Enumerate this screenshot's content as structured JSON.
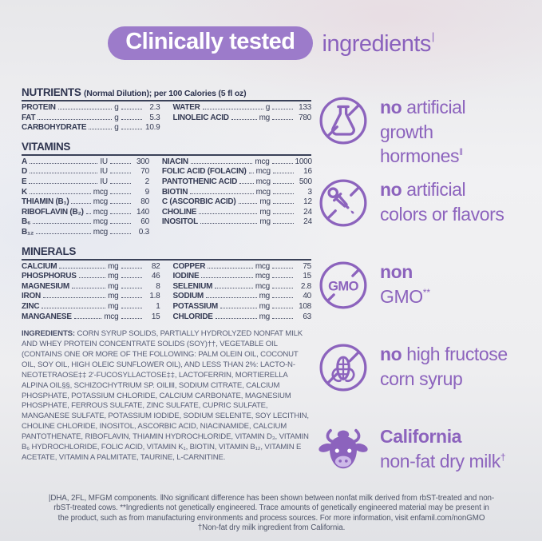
{
  "header": {
    "pill_label": "Clinically tested",
    "suffix": "ingredients",
    "suffix_mark": "|"
  },
  "accent_colors": {
    "pill_purple": "#9c7bca",
    "claim_purple": "#8c63bd",
    "table_ink": "#353b54"
  },
  "nutrients": {
    "title": "NUTRIENTS",
    "subtitle": "(Normal Dilution); per 100 Calories (5 fl oz)",
    "left": [
      {
        "name": "PROTEIN",
        "unit": "g",
        "value": "2.3"
      },
      {
        "name": "FAT",
        "unit": "g",
        "value": "5.3"
      },
      {
        "name": "CARBOHYDRATE",
        "unit": "g",
        "value": "10.9"
      }
    ],
    "right": [
      {
        "name": "WATER",
        "unit": "g",
        "value": "133"
      },
      {
        "name": "LINOLEIC ACID",
        "unit": "mg",
        "value": "780"
      }
    ]
  },
  "vitamins": {
    "title": "VITAMINS",
    "left": [
      {
        "name": "A",
        "unit": "IU",
        "value": "300"
      },
      {
        "name": "D",
        "unit": "IU",
        "value": "70"
      },
      {
        "name": "E",
        "unit": "IU",
        "value": "2"
      },
      {
        "name": "K",
        "unit": "mcg",
        "value": "9"
      },
      {
        "name": "THIAMIN (B₁)",
        "unit": "mcg",
        "value": "80"
      },
      {
        "name": "RIBOFLAVIN (B₂)",
        "unit": "mcg",
        "value": "140"
      },
      {
        "name": "B₆",
        "unit": "mcg",
        "value": "60"
      },
      {
        "name": "B₁₂",
        "unit": "mcg",
        "value": "0.3"
      }
    ],
    "right": [
      {
        "name": "NIACIN",
        "unit": "mcg",
        "value": "1000"
      },
      {
        "name": "FOLIC ACID (FOLACIN)",
        "unit": "mcg",
        "value": "16"
      },
      {
        "name": "PANTOTHENIC ACID",
        "unit": "mcg",
        "value": "500"
      },
      {
        "name": "BIOTIN",
        "unit": "mcg",
        "value": "3"
      },
      {
        "name": "C (ASCORBIC ACID)",
        "unit": "mg",
        "value": "12"
      },
      {
        "name": "CHOLINE",
        "unit": "mg",
        "value": "24"
      },
      {
        "name": "INOSITOL",
        "unit": "mg",
        "value": "24"
      }
    ]
  },
  "minerals": {
    "title": "MINERALS",
    "left": [
      {
        "name": "CALCIUM",
        "unit": "mg",
        "value": "82"
      },
      {
        "name": "PHOSPHORUS",
        "unit": "mg",
        "value": "46"
      },
      {
        "name": "MAGNESIUM",
        "unit": "mg",
        "value": "8"
      },
      {
        "name": "IRON",
        "unit": "mg",
        "value": "1.8"
      },
      {
        "name": "ZINC",
        "unit": "mg",
        "value": "1"
      },
      {
        "name": "MANGANESE",
        "unit": "mcg",
        "value": "15"
      }
    ],
    "right": [
      {
        "name": "COPPER",
        "unit": "mcg",
        "value": "75"
      },
      {
        "name": "IODINE",
        "unit": "mcg",
        "value": "15"
      },
      {
        "name": "SELENIUM",
        "unit": "mcg",
        "value": "2.8"
      },
      {
        "name": "SODIUM",
        "unit": "mg",
        "value": "40"
      },
      {
        "name": "POTASSIUM",
        "unit": "mg",
        "value": "108"
      },
      {
        "name": "CHLORIDE",
        "unit": "mg",
        "value": "63"
      }
    ]
  },
  "ingredients": {
    "label": "INGREDIENTS:",
    "text": " CORN SYRUP SOLIDS, PARTIALLY HYDROLYZED NONFAT MILK AND WHEY PROTEIN CONCENTRATE SOLIDS (SOY)††, VEGETABLE OIL (CONTAINS ONE OR MORE OF THE FOLLOWING: PALM OLEIN OIL, COCONUT OIL, SOY OIL, HIGH OLEIC SUNFLOWER OIL), AND LESS THAN 2%: LACTO-N-NEOTETRAOSE‡‡ 2'-FUCOSYLLACTOSE‡‡, LACTOFERRIN, MORTIERELLA ALPINA OIL§§, SCHIZOCHYTRIUM SP. OIL‖‖, SODIUM CITRATE, CALCIUM PHOSPHATE, POTASSIUM CHLORIDE, CALCIUM CARBONATE, MAGNESIUM PHOSPHATE, FERROUS SULFATE, ZINC SULFATE, CUPRIC SULFATE, MANGANESE SULFATE, POTASSIUM IODIDE, SODIUM SELENITE, SOY LECITHIN, CHOLINE CHLORIDE, INOSITOL, ASCORBIC ACID, NIACINAMIDE, CALCIUM PANTOTHENATE, RIBOFLAVIN, THIAMIN HYDROCHLORIDE, VITAMIN D₃, VITAMIN B₆ HYDROCHLORIDE, FOLIC ACID, VITAMIN K₁, BIOTIN, VITAMIN B₁₂, VITAMIN E ACETATE, VITAMIN A PALMITATE, TAURINE, L-CARNITINE."
  },
  "claims": [
    {
      "icon": "no-flask",
      "bold": "no",
      "rest": " artificial",
      "line2": "growth",
      "line2_sup": "",
      "line3": "hormones",
      "line3_sup": "‖"
    },
    {
      "icon": "no-dropper",
      "bold": "no",
      "rest": " artificial",
      "line2": "colors or flavors",
      "line2_sup": "",
      "line3": "",
      "line3_sup": ""
    },
    {
      "icon": "no-gmo",
      "bold": "non",
      "rest": "",
      "line2": "GMO",
      "line2_sup": "**",
      "line3": "",
      "line3_sup": ""
    },
    {
      "icon": "no-corn",
      "bold": "no",
      "rest": " high fructose",
      "line2": "corn syrup",
      "line2_sup": "",
      "line3": "",
      "line3_sup": ""
    },
    {
      "icon": "cow",
      "bold": "California",
      "rest": "",
      "line2": "non-fat dry milk",
      "line2_sup": "†",
      "line3": "",
      "line3_sup": ""
    }
  ],
  "footnotes": {
    "para1": "|DHA, 2FL, MFGM components. ‖No significant difference has been shown between nonfat milk derived from rbST-treated and non-rbST-treated cows. **Ingredients not genetically engineered. Trace amounts of genetically engineered material may be present in the product, such as from manufacturing environments and process sources. For more information, visit enfamil.com/nonGMO",
    "para2": "†Non-fat dry milk ingredient from California."
  }
}
